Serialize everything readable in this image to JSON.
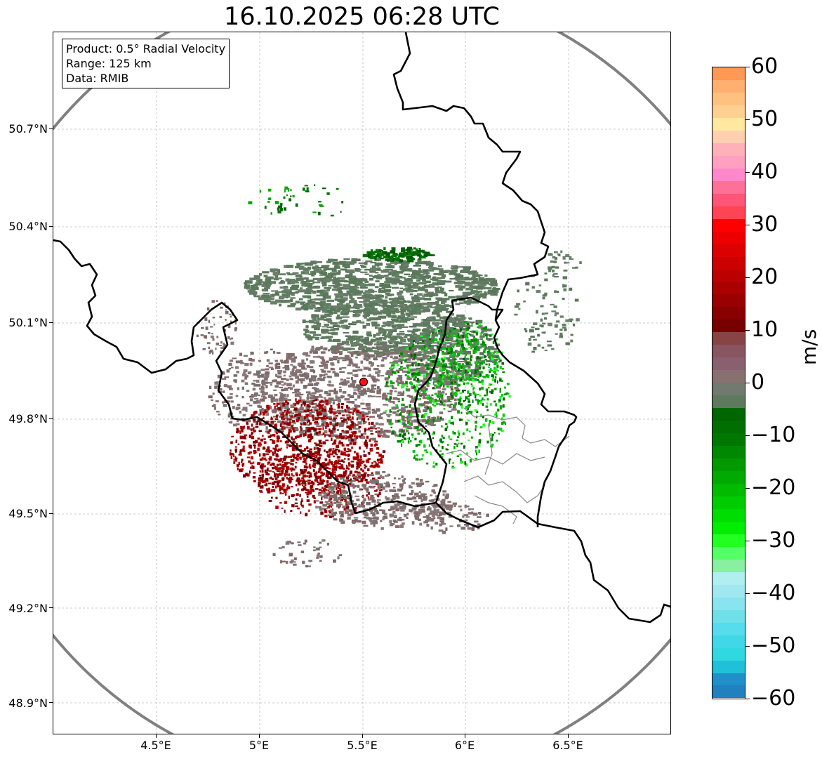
{
  "title": "16.10.2025 06:28 UTC",
  "info_box": {
    "product": "Product: 0.5° Radial Velocity",
    "range": "Range: 125 km",
    "data": "Data: RMIB"
  },
  "axes": {
    "lat_labels": [
      "50.7°N",
      "50.4°N",
      "50.1°N",
      "49.8°N",
      "49.5°N",
      "49.2°N",
      "48.9°N"
    ],
    "lon_labels": [
      "4.5°E",
      "5°E",
      "5.5°E",
      "6°E",
      "6.5°E"
    ]
  },
  "colorbar": {
    "unit": "m/s",
    "tick_labels": [
      "60",
      "50",
      "40",
      "30",
      "20",
      "10",
      "0",
      "−10",
      "−20",
      "−30",
      "−40",
      "−50",
      "−60"
    ],
    "range": [
      -60,
      60
    ],
    "colors": [
      "#ff9955",
      "#ffb070",
      "#ffc080",
      "#ffd090",
      "#ffe8a0",
      "#ffd0b0",
      "#ffb0b8",
      "#ffa0c0",
      "#ff88cc",
      "#ff7099",
      "#ff5577",
      "#ff4455",
      "#ff0000",
      "#ee0000",
      "#dd0000",
      "#cc0000",
      "#bb0000",
      "#aa0000",
      "#990000",
      "#880000",
      "#770000",
      "#884444",
      "#885560",
      "#886070",
      "#887070",
      "#707a6e",
      "#5e7a5e",
      "#006600",
      "#006e00",
      "#007700",
      "#008800",
      "#009900",
      "#00aa00",
      "#00bb00",
      "#00cc00",
      "#00dd00",
      "#00ee00",
      "#22ff22",
      "#55ff66",
      "#88f0a0",
      "#b0eef0",
      "#a0e8f0",
      "#88e4ee",
      "#70e0e8",
      "#55ddee",
      "#40d8e8",
      "#30d8e0",
      "#20c0d8",
      "#2090c8",
      "#2080c0"
    ]
  },
  "radar": {
    "site": "radar-site"
  }
}
